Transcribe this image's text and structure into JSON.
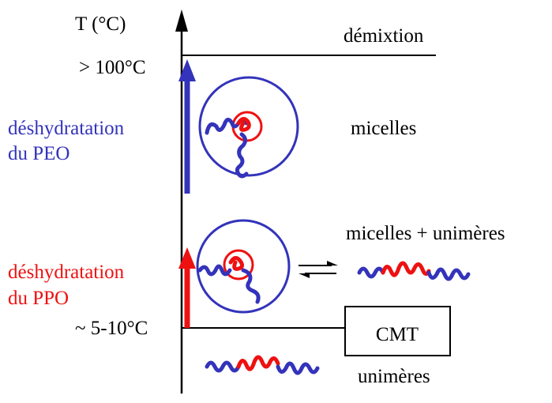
{
  "axis": {
    "ylabel": "T (°C)",
    "tick_high": "> 100°C",
    "tick_low": "~ 5-10°C"
  },
  "regions": {
    "top": "démixtion",
    "upper": "micelles",
    "middle": "micelles + unimères",
    "bottom": "unimères"
  },
  "cmt_label": "CMT",
  "arrows": {
    "peo_line1": "déshydratation",
    "peo_line2": "du PEO",
    "ppo_line1": "déshydratation",
    "ppo_line2": "du PPO"
  },
  "colors": {
    "peo": "#3333bb",
    "ppo": "#ee1111",
    "axis": "#000000"
  }
}
